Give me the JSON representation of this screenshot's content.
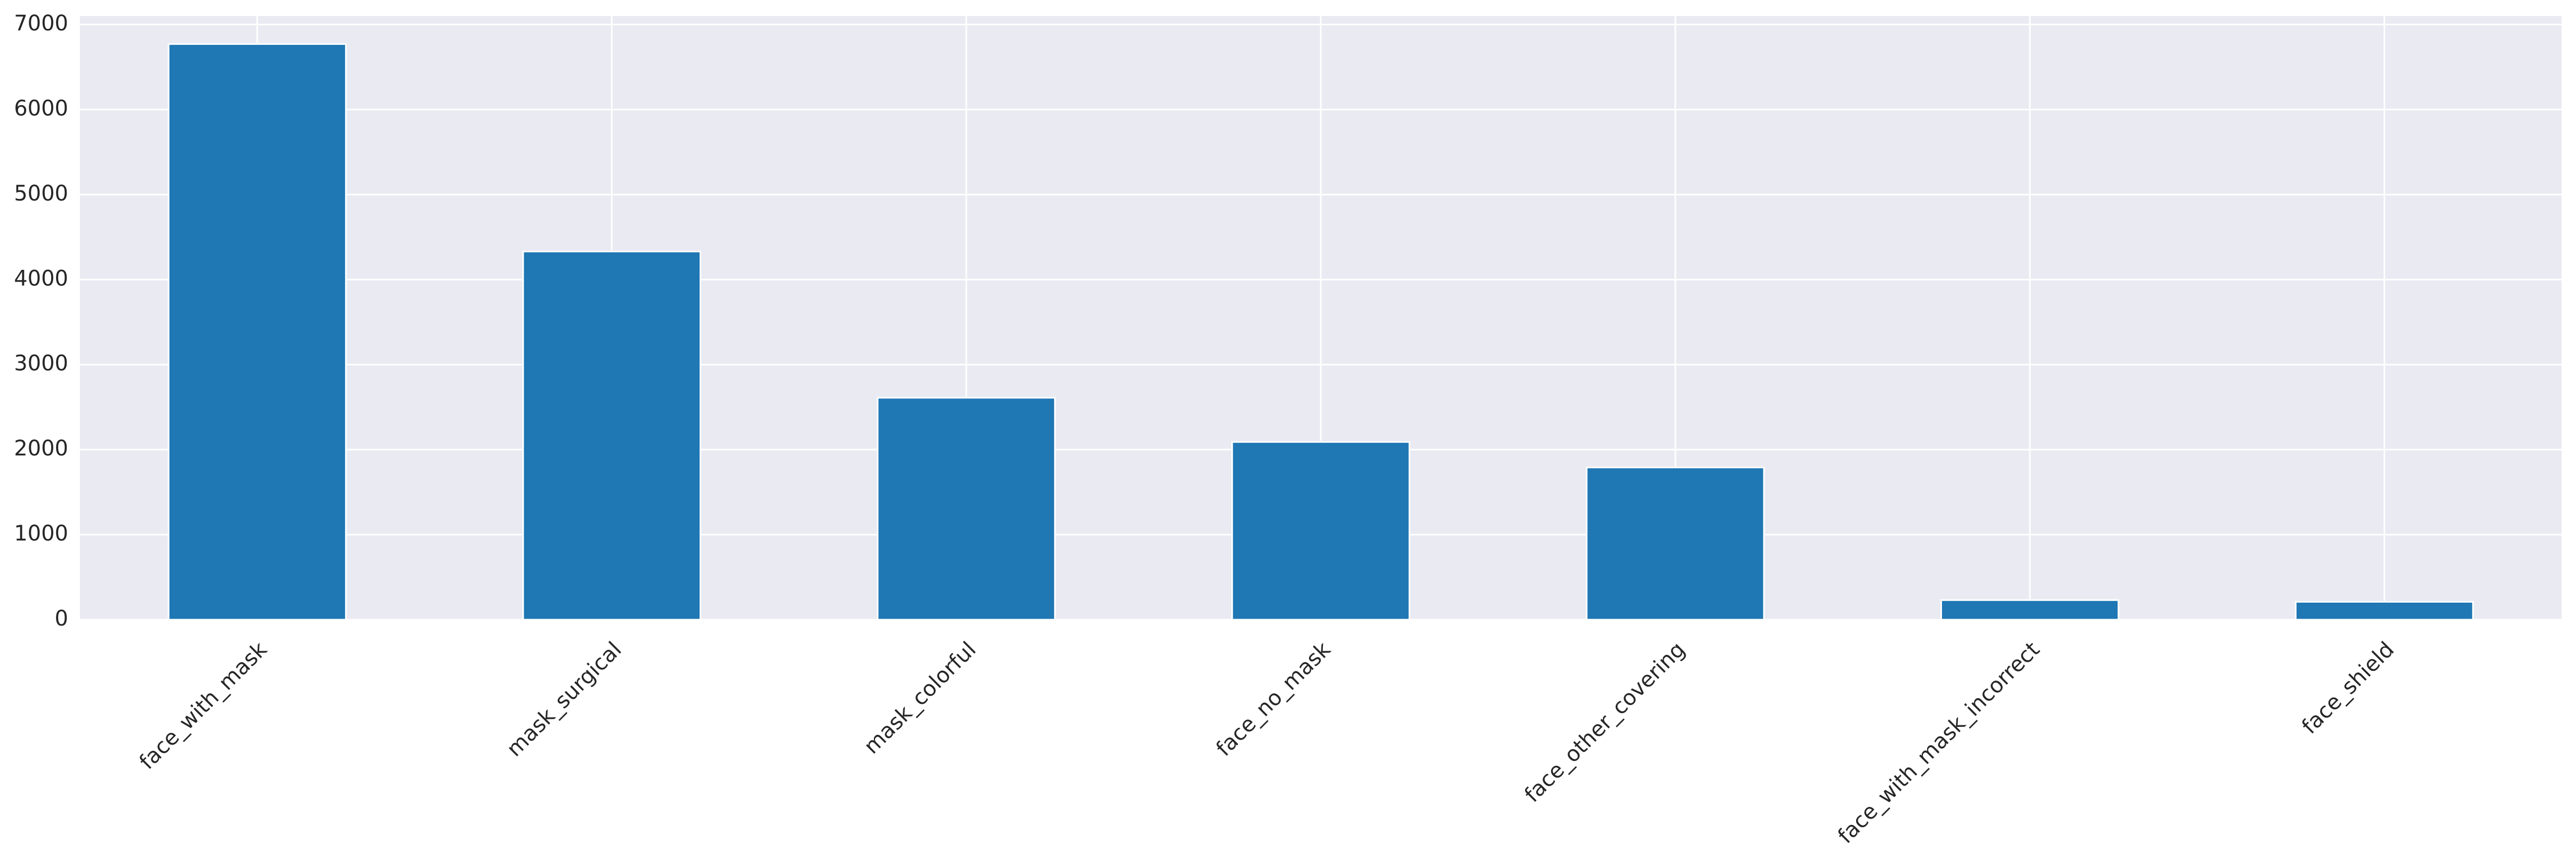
{
  "chart_data": {
    "type": "bar",
    "title": "",
    "xlabel": "",
    "ylabel": "",
    "categories": [
      "face_with_mask",
      "mask_surgical",
      "mask_colorful",
      "face_no_mask",
      "face_other_covering",
      "face_with_mask_incorrect",
      "face_shield"
    ],
    "values": [
      6770,
      4330,
      2610,
      2090,
      1790,
      230,
      210
    ],
    "ylim": [
      0,
      7100
    ],
    "yticks": [
      0,
      1000,
      2000,
      3000,
      4000,
      5000,
      6000,
      7000
    ],
    "grid": true,
    "legend": "none",
    "colors": {
      "bar": "#1f77b4",
      "plot_background": "#eaeaf2",
      "grid": "#ffffff",
      "text": "#262626"
    }
  }
}
